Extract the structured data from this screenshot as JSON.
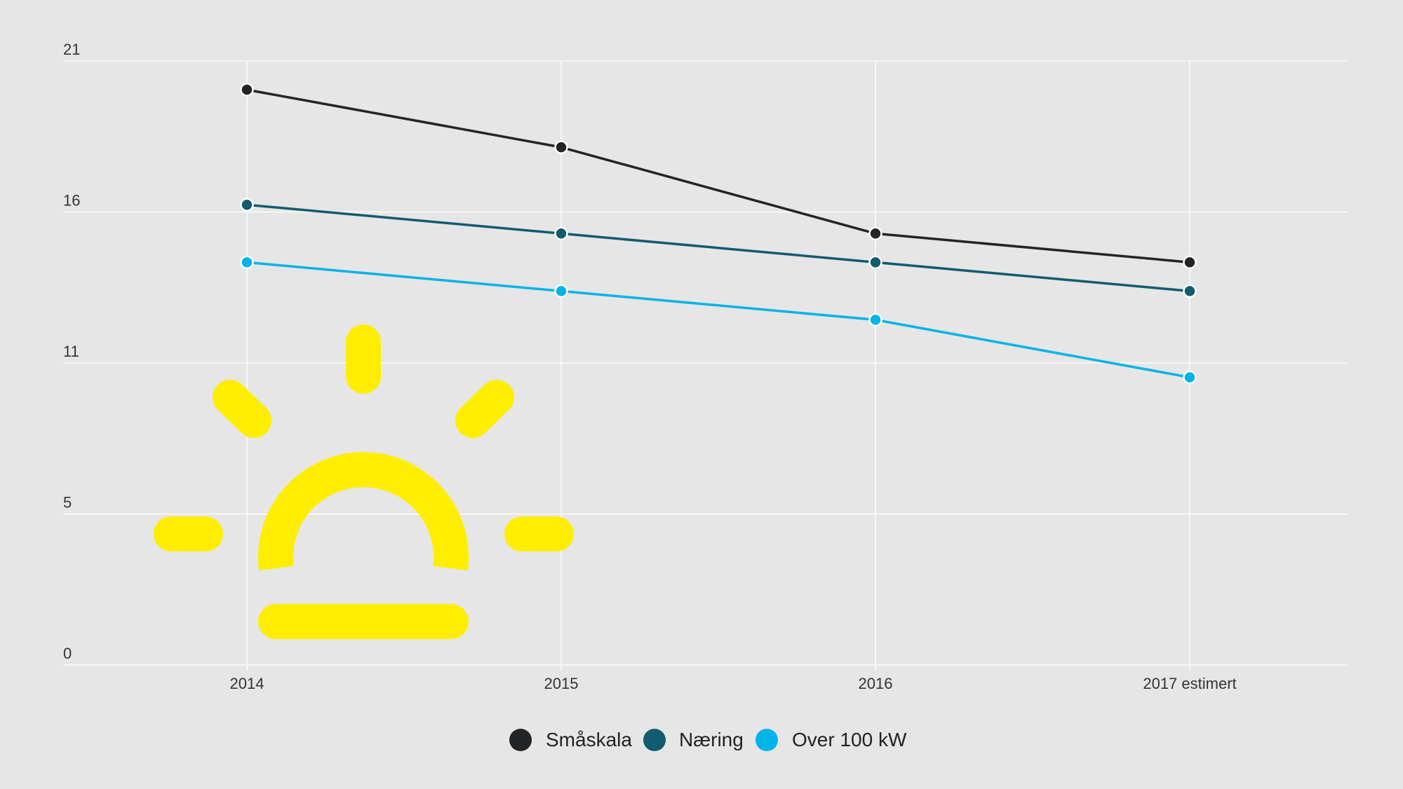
{
  "chart_data": {
    "type": "line",
    "title": "",
    "xlabel": "",
    "ylabel": "",
    "categories": [
      "2014",
      "2015",
      "2016",
      "2017 estimert"
    ],
    "ylim": [
      0,
      21
    ],
    "yticks": [
      "0",
      "5",
      "11",
      "16",
      "21"
    ],
    "ytick_values": [
      0,
      5.25,
      10.5,
      15.75,
      21
    ],
    "grid": "horizontal and vertical",
    "legend_position": "bottom",
    "series": [
      {
        "name": "Småskala",
        "color": "#222426",
        "values": [
          20.0,
          18.0,
          15.0,
          14.0
        ]
      },
      {
        "name": "Næring",
        "color": "#135b6e",
        "values": [
          16.0,
          15.0,
          14.0,
          13.0
        ]
      },
      {
        "name": "Over 100 kW",
        "color": "#00b4e8",
        "values": [
          14.0,
          13.0,
          12.0,
          10.0
        ]
      }
    ]
  },
  "decoration": {
    "icon": "sunrise-icon",
    "color": "#ffee00"
  }
}
